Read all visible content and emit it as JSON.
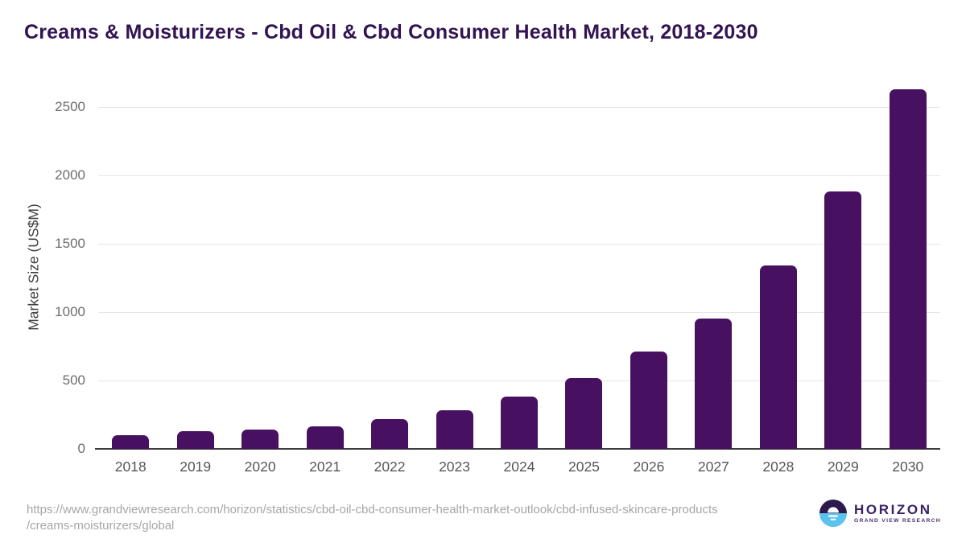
{
  "chart_data": {
    "type": "bar",
    "title": "Creams & Moisturizers - Cbd Oil & Cbd Consumer Health Market, 2018-2030",
    "categories": [
      "2018",
      "2019",
      "2020",
      "2021",
      "2022",
      "2023",
      "2024",
      "2025",
      "2026",
      "2027",
      "2028",
      "2029",
      "2030"
    ],
    "values": [
      100,
      130,
      140,
      165,
      218,
      285,
      385,
      515,
      710,
      950,
      1340,
      1880,
      2630
    ],
    "xlabel": "",
    "ylabel": "Market Size (US$M)",
    "ylim": [
      0,
      2650
    ],
    "yticks": [
      0,
      500,
      1000,
      1500,
      2000,
      2500
    ],
    "grid": "horizontal-only",
    "legend": "none",
    "bar_color": "#481060"
  },
  "footer": {
    "source_url_line1": "https://www.grandviewresearch.com/horizon/statistics/cbd-oil-cbd-consumer-health-market-outlook/cbd-infused-skincare-products",
    "source_url_line2": "/creams-moisturizers/global"
  },
  "logo": {
    "name": "HORIZON",
    "subtitle": "GRAND VIEW RESEARCH",
    "circle_top_color": "#2d1a4d",
    "circle_bottom_color": "#5bc2ee",
    "text_color": "#3b2064"
  },
  "appearance": {
    "title_color": "#331453",
    "gridline_color": "#e5e5e5",
    "axis_color": "#3d3d3d",
    "tick_label_color": "#6d6d6d",
    "background": "#ffffff"
  }
}
